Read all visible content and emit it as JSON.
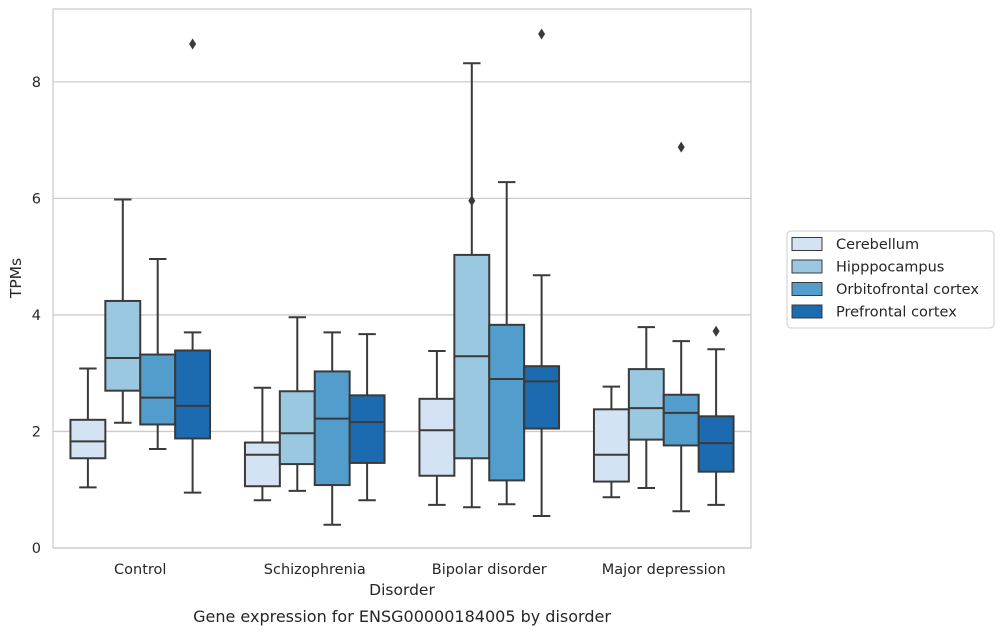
{
  "chart_data": {
    "type": "box",
    "caption": "Gene expression for ENSG00000184005 by disorder",
    "xlabel": "Disorder",
    "ylabel": "TPMs",
    "ylim": [
      0,
      9.25
    ],
    "yticks": [
      0,
      2,
      4,
      6,
      8
    ],
    "grid": "horizontal",
    "legend_position": "right",
    "categories": [
      "Control",
      "Schizophrenia",
      "Bipolar disorder",
      "Major depression"
    ],
    "series": [
      {
        "name": "Cerebellum",
        "color": "#d3e3f3",
        "boxes": [
          {
            "whisker_low": 1.04,
            "q1": 1.54,
            "median": 1.83,
            "q3": 2.2,
            "whisker_high": 3.08,
            "outliers": []
          },
          {
            "whisker_low": 0.82,
            "q1": 1.06,
            "median": 1.6,
            "q3": 1.81,
            "whisker_high": 2.75,
            "outliers": []
          },
          {
            "whisker_low": 0.74,
            "q1": 1.24,
            "median": 2.02,
            "q3": 2.56,
            "whisker_high": 3.38,
            "outliers": []
          },
          {
            "whisker_low": 0.87,
            "q1": 1.14,
            "median": 1.6,
            "q3": 2.38,
            "whisker_high": 2.77,
            "outliers": []
          }
        ]
      },
      {
        "name": "Hipppocampus",
        "color": "#9ac8e0",
        "boxes": [
          {
            "whisker_low": 2.15,
            "q1": 2.7,
            "median": 3.26,
            "q3": 4.24,
            "whisker_high": 5.98,
            "outliers": []
          },
          {
            "whisker_low": 0.98,
            "q1": 1.44,
            "median": 1.97,
            "q3": 2.69,
            "whisker_high": 3.96,
            "outliers": []
          },
          {
            "whisker_low": 0.7,
            "q1": 1.54,
            "median": 3.29,
            "q3": 5.03,
            "whisker_high": 8.32,
            "outliers": [
              5.96
            ]
          },
          {
            "whisker_low": 1.03,
            "q1": 1.86,
            "median": 2.4,
            "q3": 3.07,
            "whisker_high": 3.79,
            "outliers": []
          }
        ]
      },
      {
        "name": "Orbitofrontal cortex",
        "color": "#529dcc",
        "boxes": [
          {
            "whisker_low": 1.7,
            "q1": 2.12,
            "median": 2.58,
            "q3": 3.32,
            "whisker_high": 4.96,
            "outliers": []
          },
          {
            "whisker_low": 0.4,
            "q1": 1.08,
            "median": 2.22,
            "q3": 3.03,
            "whisker_high": 3.7,
            "outliers": []
          },
          {
            "whisker_low": 0.75,
            "q1": 1.16,
            "median": 2.9,
            "q3": 3.83,
            "whisker_high": 6.28,
            "outliers": []
          },
          {
            "whisker_low": 0.63,
            "q1": 1.76,
            "median": 2.32,
            "q3": 2.63,
            "whisker_high": 3.55,
            "outliers": [
              6.88
            ]
          }
        ]
      },
      {
        "name": "Prefrontal cortex",
        "color": "#1c6aaf",
        "boxes": [
          {
            "whisker_low": 0.95,
            "q1": 1.88,
            "median": 2.44,
            "q3": 3.39,
            "whisker_high": 3.7,
            "outliers": [
              8.65
            ]
          },
          {
            "whisker_low": 0.82,
            "q1": 1.46,
            "median": 2.16,
            "q3": 2.62,
            "whisker_high": 3.67,
            "outliers": []
          },
          {
            "whisker_low": 0.55,
            "q1": 2.05,
            "median": 2.86,
            "q3": 3.12,
            "whisker_high": 4.68,
            "outliers": [
              8.82
            ]
          },
          {
            "whisker_low": 0.74,
            "q1": 1.31,
            "median": 1.8,
            "q3": 2.26,
            "whisker_high": 3.41,
            "outliers": [
              3.72
            ]
          }
        ]
      }
    ]
  }
}
